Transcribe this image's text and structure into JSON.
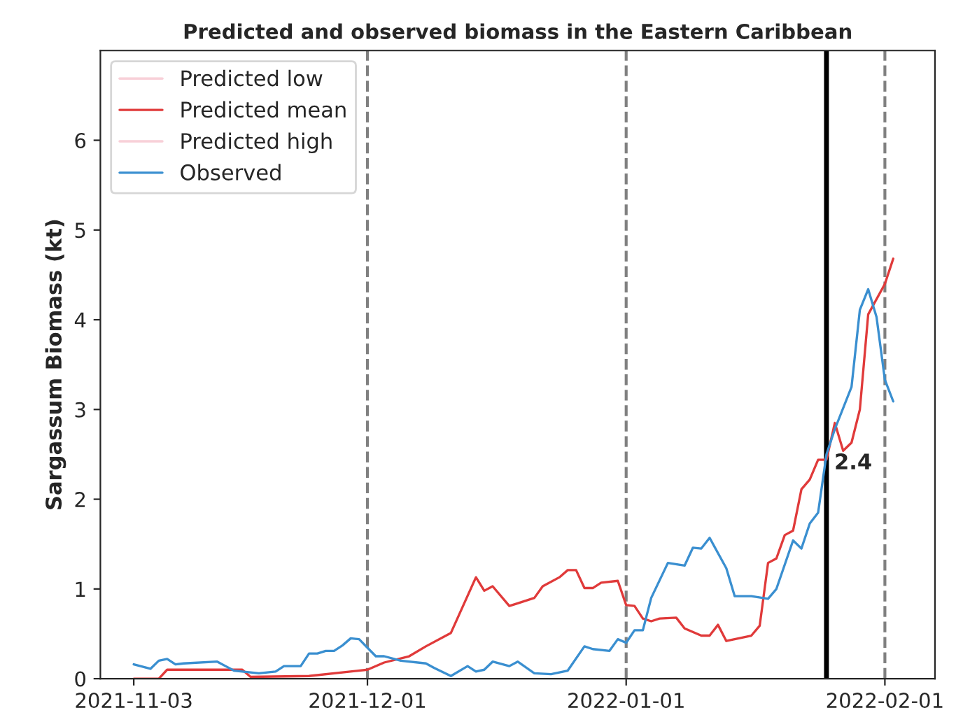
{
  "chart_data": {
    "type": "line",
    "title": "Predicted and observed biomass in the Eastern Caribbean",
    "ylabel": "Sargassum Biomass (kt)",
    "xlim": [
      "2021-10-30",
      "2022-02-07"
    ],
    "xticks": [
      "2021-11-03",
      "2021-12-01",
      "2022-01-01",
      "2022-02-01"
    ],
    "ylim": [
      0,
      7
    ],
    "yticks": [
      0,
      1,
      2,
      3,
      4,
      5,
      6
    ],
    "legend": "top left",
    "grid": false,
    "series": [
      {
        "name": "Predicted low",
        "color": "#f8d0d8"
      },
      {
        "name": "Predicted mean",
        "color": "#e03a3a",
        "x": [
          "2021-11-03",
          "2021-11-06",
          "2021-11-07",
          "2021-11-16",
          "2021-11-17",
          "2021-11-24",
          "2021-12-01",
          "2021-12-03",
          "2021-12-06",
          "2021-12-08",
          "2021-12-11",
          "2021-12-14",
          "2021-12-15",
          "2021-12-16",
          "2021-12-18",
          "2021-12-19",
          "2021-12-21",
          "2021-12-22",
          "2021-12-24",
          "2021-12-25",
          "2021-12-26",
          "2021-12-27",
          "2021-12-28",
          "2021-12-29",
          "2021-12-31",
          "2022-01-01",
          "2022-01-02",
          "2022-01-03",
          "2022-01-04",
          "2022-01-05",
          "2022-01-07",
          "2022-01-08",
          "2022-01-10",
          "2022-01-11",
          "2022-01-12",
          "2022-01-13",
          "2022-01-16",
          "2022-01-17",
          "2022-01-18",
          "2022-01-19",
          "2022-01-20",
          "2022-01-21",
          "2022-01-22",
          "2022-01-23",
          "2022-01-24",
          "2022-01-25",
          "2022-01-26",
          "2022-01-27",
          "2022-01-28",
          "2022-01-29",
          "2022-01-30",
          "2022-02-01",
          "2022-02-02"
        ],
        "values": [
          0,
          0,
          0.1,
          0.1,
          0.02,
          0.03,
          0.1,
          0.18,
          0.25,
          0.36,
          0.51,
          1.13,
          0.98,
          1.03,
          0.81,
          0.84,
          0.9,
          1.03,
          1.13,
          1.21,
          1.21,
          1.01,
          1.01,
          1.07,
          1.09,
          0.82,
          0.81,
          0.67,
          0.64,
          0.67,
          0.68,
          0.56,
          0.48,
          0.48,
          0.6,
          0.42,
          0.48,
          0.59,
          1.29,
          1.34,
          1.6,
          1.65,
          2.11,
          2.22,
          2.44,
          2.44,
          2.85,
          2.54,
          2.63,
          3.0,
          4.06,
          4.4,
          4.68
        ]
      },
      {
        "name": "Predicted high",
        "color": "#f8d0d8"
      },
      {
        "name": "Observed",
        "color": "#3a8fd0",
        "x": [
          "2021-11-03",
          "2021-11-05",
          "2021-11-06",
          "2021-11-07",
          "2021-11-08",
          "2021-11-09",
          "2021-11-13",
          "2021-11-14",
          "2021-11-15",
          "2021-11-16",
          "2021-11-18",
          "2021-11-20",
          "2021-11-21",
          "2021-11-23",
          "2021-11-24",
          "2021-11-25",
          "2021-11-26",
          "2021-11-27",
          "2021-11-28",
          "2021-11-29",
          "2021-11-30",
          "2021-12-02",
          "2021-12-03",
          "2021-12-05",
          "2021-12-08",
          "2021-12-09",
          "2021-12-11",
          "2021-12-13",
          "2021-12-14",
          "2021-12-15",
          "2021-12-16",
          "2021-12-18",
          "2021-12-19",
          "2021-12-21",
          "2021-12-23",
          "2021-12-25",
          "2021-12-27",
          "2021-12-28",
          "2021-12-30",
          "2021-12-31",
          "2022-01-01",
          "2022-01-02",
          "2022-01-03",
          "2022-01-04",
          "2022-01-06",
          "2022-01-08",
          "2022-01-09",
          "2022-01-10",
          "2022-01-11",
          "2022-01-13",
          "2022-01-14",
          "2022-01-16",
          "2022-01-18",
          "2022-01-19",
          "2022-01-21",
          "2022-01-22",
          "2022-01-23",
          "2022-01-24",
          "2022-01-25",
          "2022-01-26",
          "2022-01-28",
          "2022-01-29",
          "2022-01-30",
          "2022-01-31",
          "2022-02-01",
          "2022-02-02"
        ],
        "values": [
          0.16,
          0.11,
          0.2,
          0.22,
          0.16,
          0.17,
          0.19,
          0.14,
          0.09,
          0.08,
          0.06,
          0.08,
          0.14,
          0.14,
          0.28,
          0.28,
          0.31,
          0.31,
          0.37,
          0.45,
          0.44,
          0.25,
          0.25,
          0.2,
          0.17,
          0.12,
          0.03,
          0.14,
          0.08,
          0.1,
          0.19,
          0.14,
          0.19,
          0.06,
          0.05,
          0.09,
          0.36,
          0.33,
          0.31,
          0.44,
          0.4,
          0.54,
          0.54,
          0.9,
          1.29,
          1.26,
          1.46,
          1.45,
          1.57,
          1.23,
          0.92,
          0.92,
          0.89,
          1.0,
          1.54,
          1.45,
          1.73,
          1.85,
          2.5,
          2.78,
          3.25,
          4.11,
          4.34,
          4.03,
          3.33,
          3.09
        ]
      }
    ],
    "ref_lines": [
      {
        "axis": "x",
        "value": "2021-12-01",
        "color": "#808080",
        "line_style": "dashed"
      },
      {
        "axis": "x",
        "value": "2022-01-01",
        "color": "#808080",
        "line_style": "dashed"
      },
      {
        "axis": "x",
        "value": "2022-02-01",
        "color": "#808080",
        "line_style": "dashed"
      },
      {
        "axis": "x",
        "value": "2022-01-25",
        "color": "#000000",
        "line_style": "solid"
      }
    ],
    "annotations": [
      {
        "text": "2.4",
        "x": "2022-01-25",
        "y": 2.4
      }
    ]
  }
}
